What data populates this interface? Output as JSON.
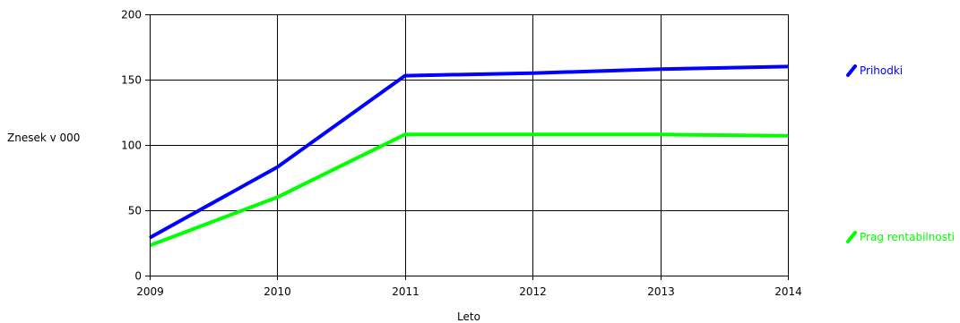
{
  "chart_data": {
    "type": "line",
    "x": [
      2009,
      2010,
      2011,
      2012,
      2013,
      2014
    ],
    "xlabel": "Leto",
    "ylabel": "Znesek v 000",
    "ylim": [
      0,
      200
    ],
    "yticks": [
      0,
      50,
      100,
      150,
      200
    ],
    "grid": true,
    "legend_position": "right",
    "series": [
      {
        "name": "Prihodki",
        "color": "#0000ff",
        "values": [
          29,
          83,
          153,
          155,
          158,
          160
        ]
      },
      {
        "name": "Prag rentabilnosti",
        "color": "#00ff00",
        "values": [
          23,
          60,
          108,
          108,
          108,
          107
        ]
      }
    ]
  }
}
